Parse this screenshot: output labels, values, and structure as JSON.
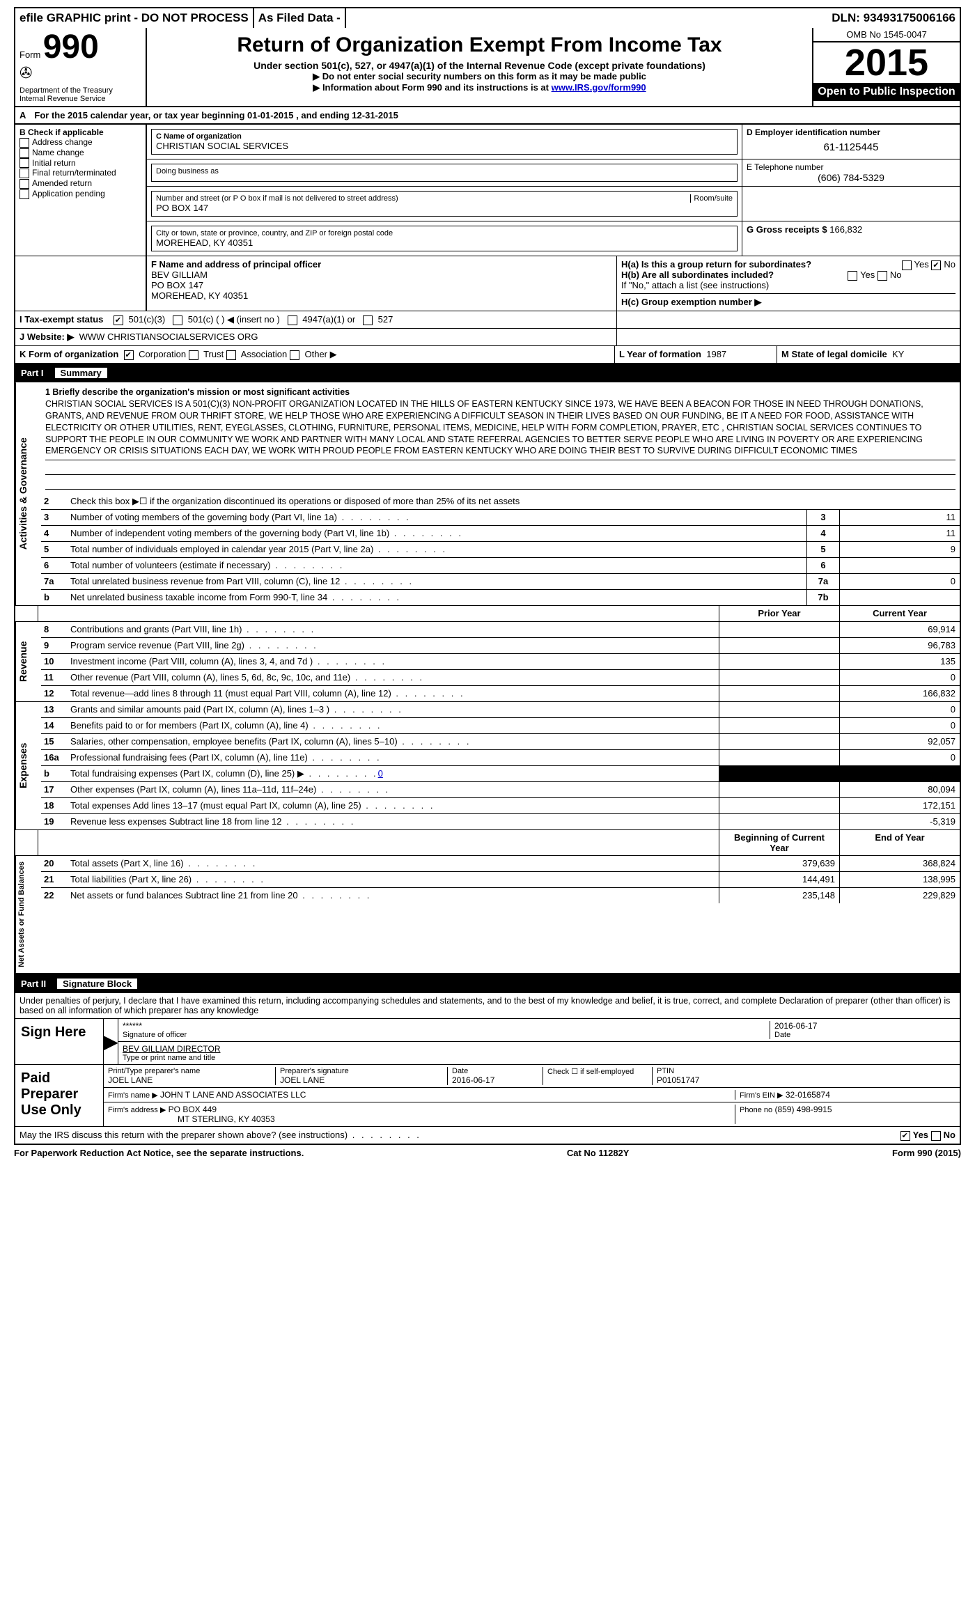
{
  "topbar": {
    "efile": "efile GRAPHIC print - DO NOT PROCESS",
    "filed": "As Filed Data -",
    "dln_label": "DLN:",
    "dln": "93493175006166"
  },
  "header": {
    "form_prefix": "Form",
    "form_num": "990",
    "dept": "Department of the Treasury\nInternal Revenue Service",
    "title": "Return of Organization Exempt From Income Tax",
    "sub1": "Under section 501(c), 527, or 4947(a)(1) of the Internal Revenue Code (except private foundations)",
    "sub2": "▶ Do not enter social security numbers on this form as it may be made public",
    "sub3_pre": "▶ Information about Form 990 and its instructions is at ",
    "sub3_link": "www.IRS.gov/form990",
    "omb": "OMB No 1545-0047",
    "year": "2015",
    "open": "Open to Public Inspection"
  },
  "lineA": {
    "text": "For the 2015 calendar year, or tax year beginning 01-01-2015",
    "ending": ", and ending 12-31-2015"
  },
  "boxB": {
    "label": "B Check if applicable",
    "items": [
      "Address change",
      "Name change",
      "Initial return",
      "Final return/terminated",
      "Amended return",
      "Application pending"
    ]
  },
  "boxC": {
    "name_label": "C Name of organization",
    "name": "CHRISTIAN SOCIAL SERVICES",
    "dba_label": "Doing business as",
    "addr_label": "Number and street (or P O box if mail is not delivered to street address)",
    "room_label": "Room/suite",
    "addr": "PO BOX 147",
    "city_label": "City or town, state or province, country, and ZIP or foreign postal code",
    "city": "MOREHEAD, KY  40351"
  },
  "boxD": {
    "label": "D Employer identification number",
    "value": "61-1125445"
  },
  "boxE": {
    "label": "E Telephone number",
    "value": "(606) 784-5329"
  },
  "boxG": {
    "label": "G Gross receipts $",
    "value": "166,832"
  },
  "boxF": {
    "label": "F   Name and address of principal officer",
    "name": "BEV GILLIAM",
    "addr1": "PO BOX 147",
    "addr2": "MOREHEAD, KY  40351"
  },
  "boxH": {
    "a": "H(a)  Is this a group return for subordinates?",
    "b": "H(b)  Are all subordinates included?",
    "note": "If \"No,\" attach a list  (see instructions)",
    "c": "H(c)  Group exemption number ▶",
    "yes": "Yes",
    "no": "No"
  },
  "lineI": {
    "label": "I   Tax-exempt status",
    "o1": "501(c)(3)",
    "o2": "501(c) (  ) ◀ (insert no )",
    "o3": "4947(a)(1) or",
    "o4": "527"
  },
  "lineJ": {
    "label": "J   Website: ▶",
    "value": "WWW CHRISTIANSOCIALSERVICES ORG"
  },
  "lineK": {
    "label": "K Form of organization",
    "o1": "Corporation",
    "o2": "Trust",
    "o3": "Association",
    "o4": "Other ▶",
    "L_label": "L Year of formation",
    "L_val": "1987",
    "M_label": "M State of legal domicile",
    "M_val": "KY"
  },
  "part1": {
    "label": "Part I",
    "title": "Summary"
  },
  "mission": {
    "lead": "1 Briefly describe the organization's mission or most significant activities",
    "text": "CHRISTIAN SOCIAL SERVICES IS A 501(C)(3) NON-PROFIT ORGANIZATION LOCATED IN THE HILLS OF EASTERN KENTUCKY  SINCE 1973, WE HAVE BEEN A BEACON FOR THOSE IN NEED  THROUGH DONATIONS, GRANTS, AND REVENUE FROM OUR THRIFT STORE, WE HELP THOSE WHO ARE EXPERIENCING A DIFFICULT SEASON IN THEIR LIVES  BASED ON OUR FUNDING, BE IT A NEED FOR FOOD, ASSISTANCE WITH ELECTRICITY OR OTHER UTILITIES, RENT, EYEGLASSES, CLOTHING, FURNITURE, PERSONAL ITEMS, MEDICINE, HELP WITH FORM COMPLETION, PRAYER, ETC , CHRISTIAN SOCIAL SERVICES CONTINUES TO SUPPORT THE PEOPLE IN OUR COMMUNITY  WE WORK AND PARTNER WITH MANY LOCAL AND STATE REFERRAL AGENCIES TO BETTER SERVE PEOPLE WHO ARE LIVING IN POVERTY OR ARE EXPERIENCING EMERGENCY OR CRISIS SITUATIONS  EACH DAY, WE WORK WITH PROUD PEOPLE FROM EASTERN KENTUCKY WHO ARE DOING THEIR BEST TO SURVIVE DURING DIFFICULT ECONOMIC TIMES"
  },
  "gov_lines": {
    "l2": "Check this box ▶☐ if the organization discontinued its operations or disposed of more than 25% of its net assets",
    "l3": {
      "text": "Number of voting members of the governing body (Part VI, line 1a)",
      "n": "3",
      "v": "11"
    },
    "l4": {
      "text": "Number of independent voting members of the governing body (Part VI, line 1b)",
      "n": "4",
      "v": "11"
    },
    "l5": {
      "text": "Total number of individuals employed in calendar year 2015 (Part V, line 2a)",
      "n": "5",
      "v": "9"
    },
    "l6": {
      "text": "Total number of volunteers (estimate if necessary)",
      "n": "6",
      "v": ""
    },
    "l7a": {
      "text": "Total unrelated business revenue from Part VIII, column (C), line 12",
      "n": "7a",
      "v": "0"
    },
    "l7b": {
      "text": "Net unrelated business taxable income from Form 990-T, line 34",
      "n": "7b",
      "v": ""
    }
  },
  "cols": {
    "prior": "Prior Year",
    "current": "Current Year",
    "beg": "Beginning of Current Year",
    "end": "End of Year"
  },
  "revenue": {
    "label": "Revenue",
    "rows": [
      {
        "n": "8",
        "t": "Contributions and grants (Part VIII, line 1h)",
        "p": "",
        "c": "69,914"
      },
      {
        "n": "9",
        "t": "Program service revenue (Part VIII, line 2g)",
        "p": "",
        "c": "96,783"
      },
      {
        "n": "10",
        "t": "Investment income (Part VIII, column (A), lines 3, 4, and 7d )",
        "p": "",
        "c": "135"
      },
      {
        "n": "11",
        "t": "Other revenue (Part VIII, column (A), lines 5, 6d, 8c, 9c, 10c, and 11e)",
        "p": "",
        "c": "0"
      },
      {
        "n": "12",
        "t": "Total revenue—add lines 8 through 11 (must equal Part VIII, column (A), line 12)",
        "p": "",
        "c": "166,832"
      }
    ]
  },
  "expenses": {
    "label": "Expenses",
    "rows": [
      {
        "n": "13",
        "t": "Grants and similar amounts paid (Part IX, column (A), lines 1–3 )",
        "p": "",
        "c": "0"
      },
      {
        "n": "14",
        "t": "Benefits paid to or for members (Part IX, column (A), line 4)",
        "p": "",
        "c": "0"
      },
      {
        "n": "15",
        "t": "Salaries, other compensation, employee benefits (Part IX, column (A), lines 5–10)",
        "p": "",
        "c": "92,057"
      },
      {
        "n": "16a",
        "t": "Professional fundraising fees (Part IX, column (A), line 11e)",
        "p": "",
        "c": "0"
      },
      {
        "n": "b",
        "t": "Total fundraising expenses (Part IX, column (D), line 25) ▶",
        "link": "0",
        "black": true
      },
      {
        "n": "17",
        "t": "Other expenses (Part IX, column (A), lines 11a–11d, 11f–24e)",
        "p": "",
        "c": "80,094"
      },
      {
        "n": "18",
        "t": "Total expenses  Add lines 13–17 (must equal Part IX, column (A), line 25)",
        "p": "",
        "c": "172,151"
      },
      {
        "n": "19",
        "t": "Revenue less expenses  Subtract line 18 from line 12",
        "p": "",
        "c": "-5,319"
      }
    ]
  },
  "netassets": {
    "label": "Net Assets or Fund Balances",
    "rows": [
      {
        "n": "20",
        "t": "Total assets (Part X, line 16)",
        "p": "379,639",
        "c": "368,824"
      },
      {
        "n": "21",
        "t": "Total liabilities (Part X, line 26)",
        "p": "144,491",
        "c": "138,995"
      },
      {
        "n": "22",
        "t": "Net assets or fund balances  Subtract line 21 from line 20",
        "p": "235,148",
        "c": "229,829"
      }
    ]
  },
  "part2": {
    "label": "Part II",
    "title": "Signature Block"
  },
  "perjury": "Under penalties of perjury, I declare that I have examined this return, including accompanying schedules and statements, and to the best of my knowledge and belief, it is true, correct, and complete  Declaration of preparer (other than officer) is based on all information of which preparer has any knowledge",
  "sign": {
    "label": "Sign Here",
    "stars": "******",
    "sig_label": "Signature of officer",
    "date": "2016-06-17",
    "date_label": "Date",
    "name": "BEV GILLIAM  DIRECTOR",
    "name_label": "Type or print name and title"
  },
  "paid": {
    "label": "Paid Preparer Use Only",
    "prep_name_label": "Print/Type preparer's name",
    "prep_name": "JOEL LANE",
    "prep_sig_label": "Preparer's signature",
    "prep_sig": "JOEL LANE",
    "date_label": "Date",
    "date": "2016-06-17",
    "check_label": "Check ☐ if self-employed",
    "ptin_label": "PTIN",
    "ptin": "P01051747",
    "firm_name_label": "Firm's name     ▶",
    "firm_name": "JOHN T LANE AND ASSOCIATES LLC",
    "firm_ein_label": "Firm's EIN ▶",
    "firm_ein": "32-0165874",
    "firm_addr_label": "Firm's address ▶",
    "firm_addr1": "PO BOX 449",
    "firm_addr2": "MT STERLING, KY  40353",
    "phone_label": "Phone no",
    "phone": "(859) 498-9915"
  },
  "discuss": {
    "text": "May the IRS discuss this return with the preparer shown above? (see instructions)",
    "yes": "Yes",
    "no": "No"
  },
  "footer": {
    "left": "For Paperwork Reduction Act Notice, see the separate instructions.",
    "mid": "Cat No 11282Y",
    "right": "Form 990 (2015)"
  },
  "sidebar": {
    "gov": "Activities & Governance"
  }
}
